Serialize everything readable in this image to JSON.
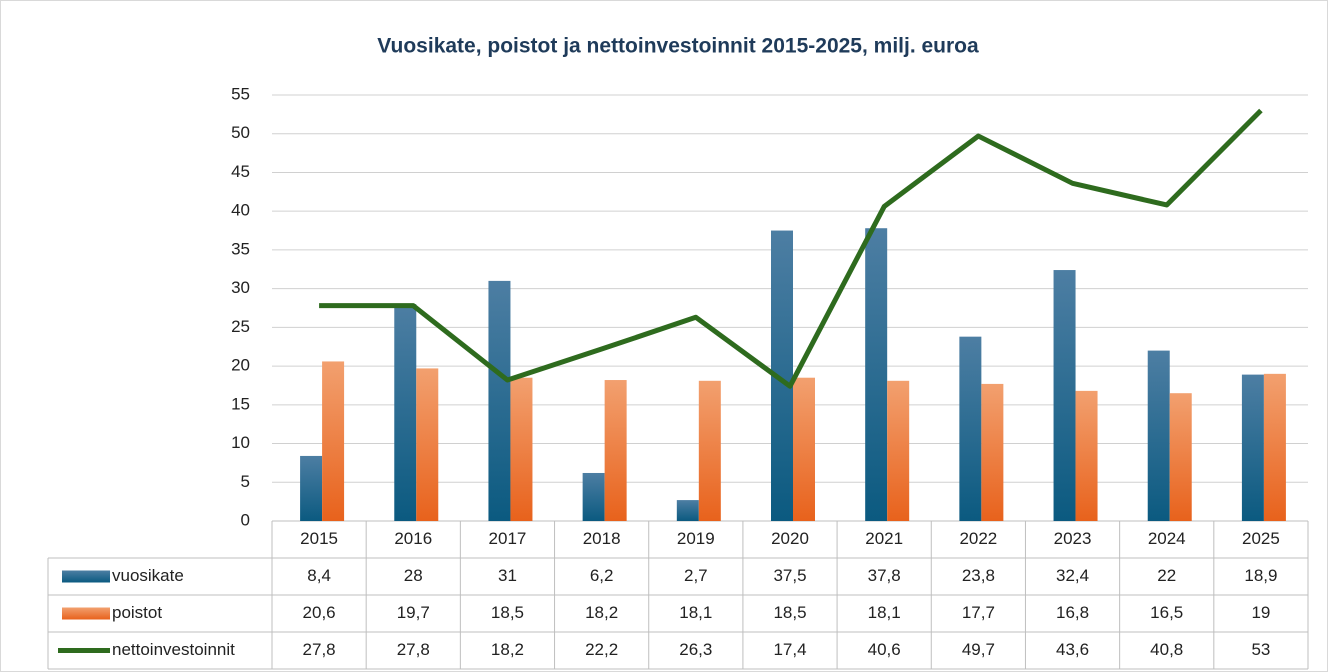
{
  "chart_data": {
    "type": "bar",
    "title": "Vuosikate, poistot ja nettoinvestoinnit 2015-2025, milj. euroa",
    "categories": [
      "2015",
      "2016",
      "2017",
      "2018",
      "2019",
      "2020",
      "2021",
      "2022",
      "2023",
      "2024",
      "2025"
    ],
    "series": [
      {
        "name": "vuosikate",
        "type": "bar",
        "color": "#1f5c82",
        "values": [
          8.4,
          28,
          31,
          6.2,
          2.7,
          37.5,
          37.8,
          23.8,
          32.4,
          22,
          18.9
        ],
        "value_labels": [
          "8,4",
          "28",
          "31",
          "6,2",
          "2,7",
          "37,5",
          "37,8",
          "23,8",
          "32,4",
          "22",
          "18,9"
        ]
      },
      {
        "name": "poistot",
        "type": "bar",
        "color": "#ed7333",
        "values": [
          20.6,
          19.7,
          18.5,
          18.2,
          18.1,
          18.5,
          18.1,
          17.7,
          16.8,
          16.5,
          19
        ],
        "value_labels": [
          "20,6",
          "19,7",
          "18,5",
          "18,2",
          "18,1",
          "18,5",
          "18,1",
          "17,7",
          "16,8",
          "16,5",
          "19"
        ]
      },
      {
        "name": "nettoinvestoinnit",
        "type": "line",
        "color": "#2e6b1e",
        "values": [
          27.8,
          27.8,
          18.2,
          22.2,
          26.3,
          17.4,
          40.6,
          49.7,
          43.6,
          40.8,
          53
        ],
        "value_labels": [
          "27,8",
          "27,8",
          "18,2",
          "22,2",
          "26,3",
          "17,4",
          "40,6",
          "49,7",
          "43,6",
          "40,8",
          "53"
        ]
      }
    ],
    "ylim": [
      0,
      55
    ],
    "yticks": [
      0,
      5,
      10,
      15,
      20,
      25,
      30,
      35,
      40,
      45,
      50,
      55
    ],
    "grid": true
  }
}
